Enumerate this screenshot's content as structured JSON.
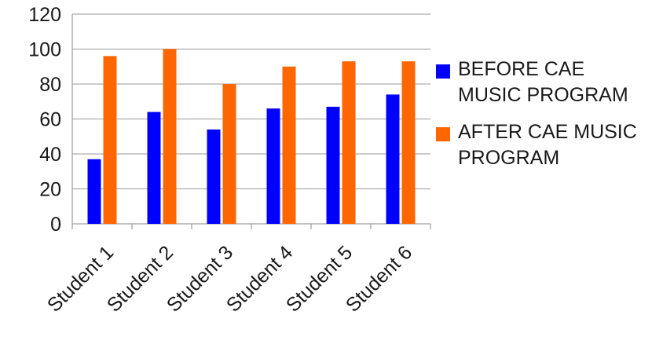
{
  "chart_data": {
    "type": "bar",
    "categories": [
      "Student 1",
      "Student 2",
      "Student 3",
      "Student 4",
      "Student 5",
      "Student 6"
    ],
    "series": [
      {
        "name": "BEFORE CAE MUSIC PROGRAM",
        "color": "#0000ff",
        "values": [
          37,
          64,
          54,
          66,
          67,
          74
        ]
      },
      {
        "name": "AFTER CAE MUSIC PROGRAM",
        "color": "#ff6600",
        "values": [
          96,
          100,
          80,
          90,
          93,
          93
        ]
      }
    ],
    "yticks": [
      "0",
      "20",
      "40",
      "60",
      "80",
      "100",
      "120"
    ],
    "ylim": [
      0,
      120
    ],
    "grid": true,
    "legend_position": "right"
  }
}
